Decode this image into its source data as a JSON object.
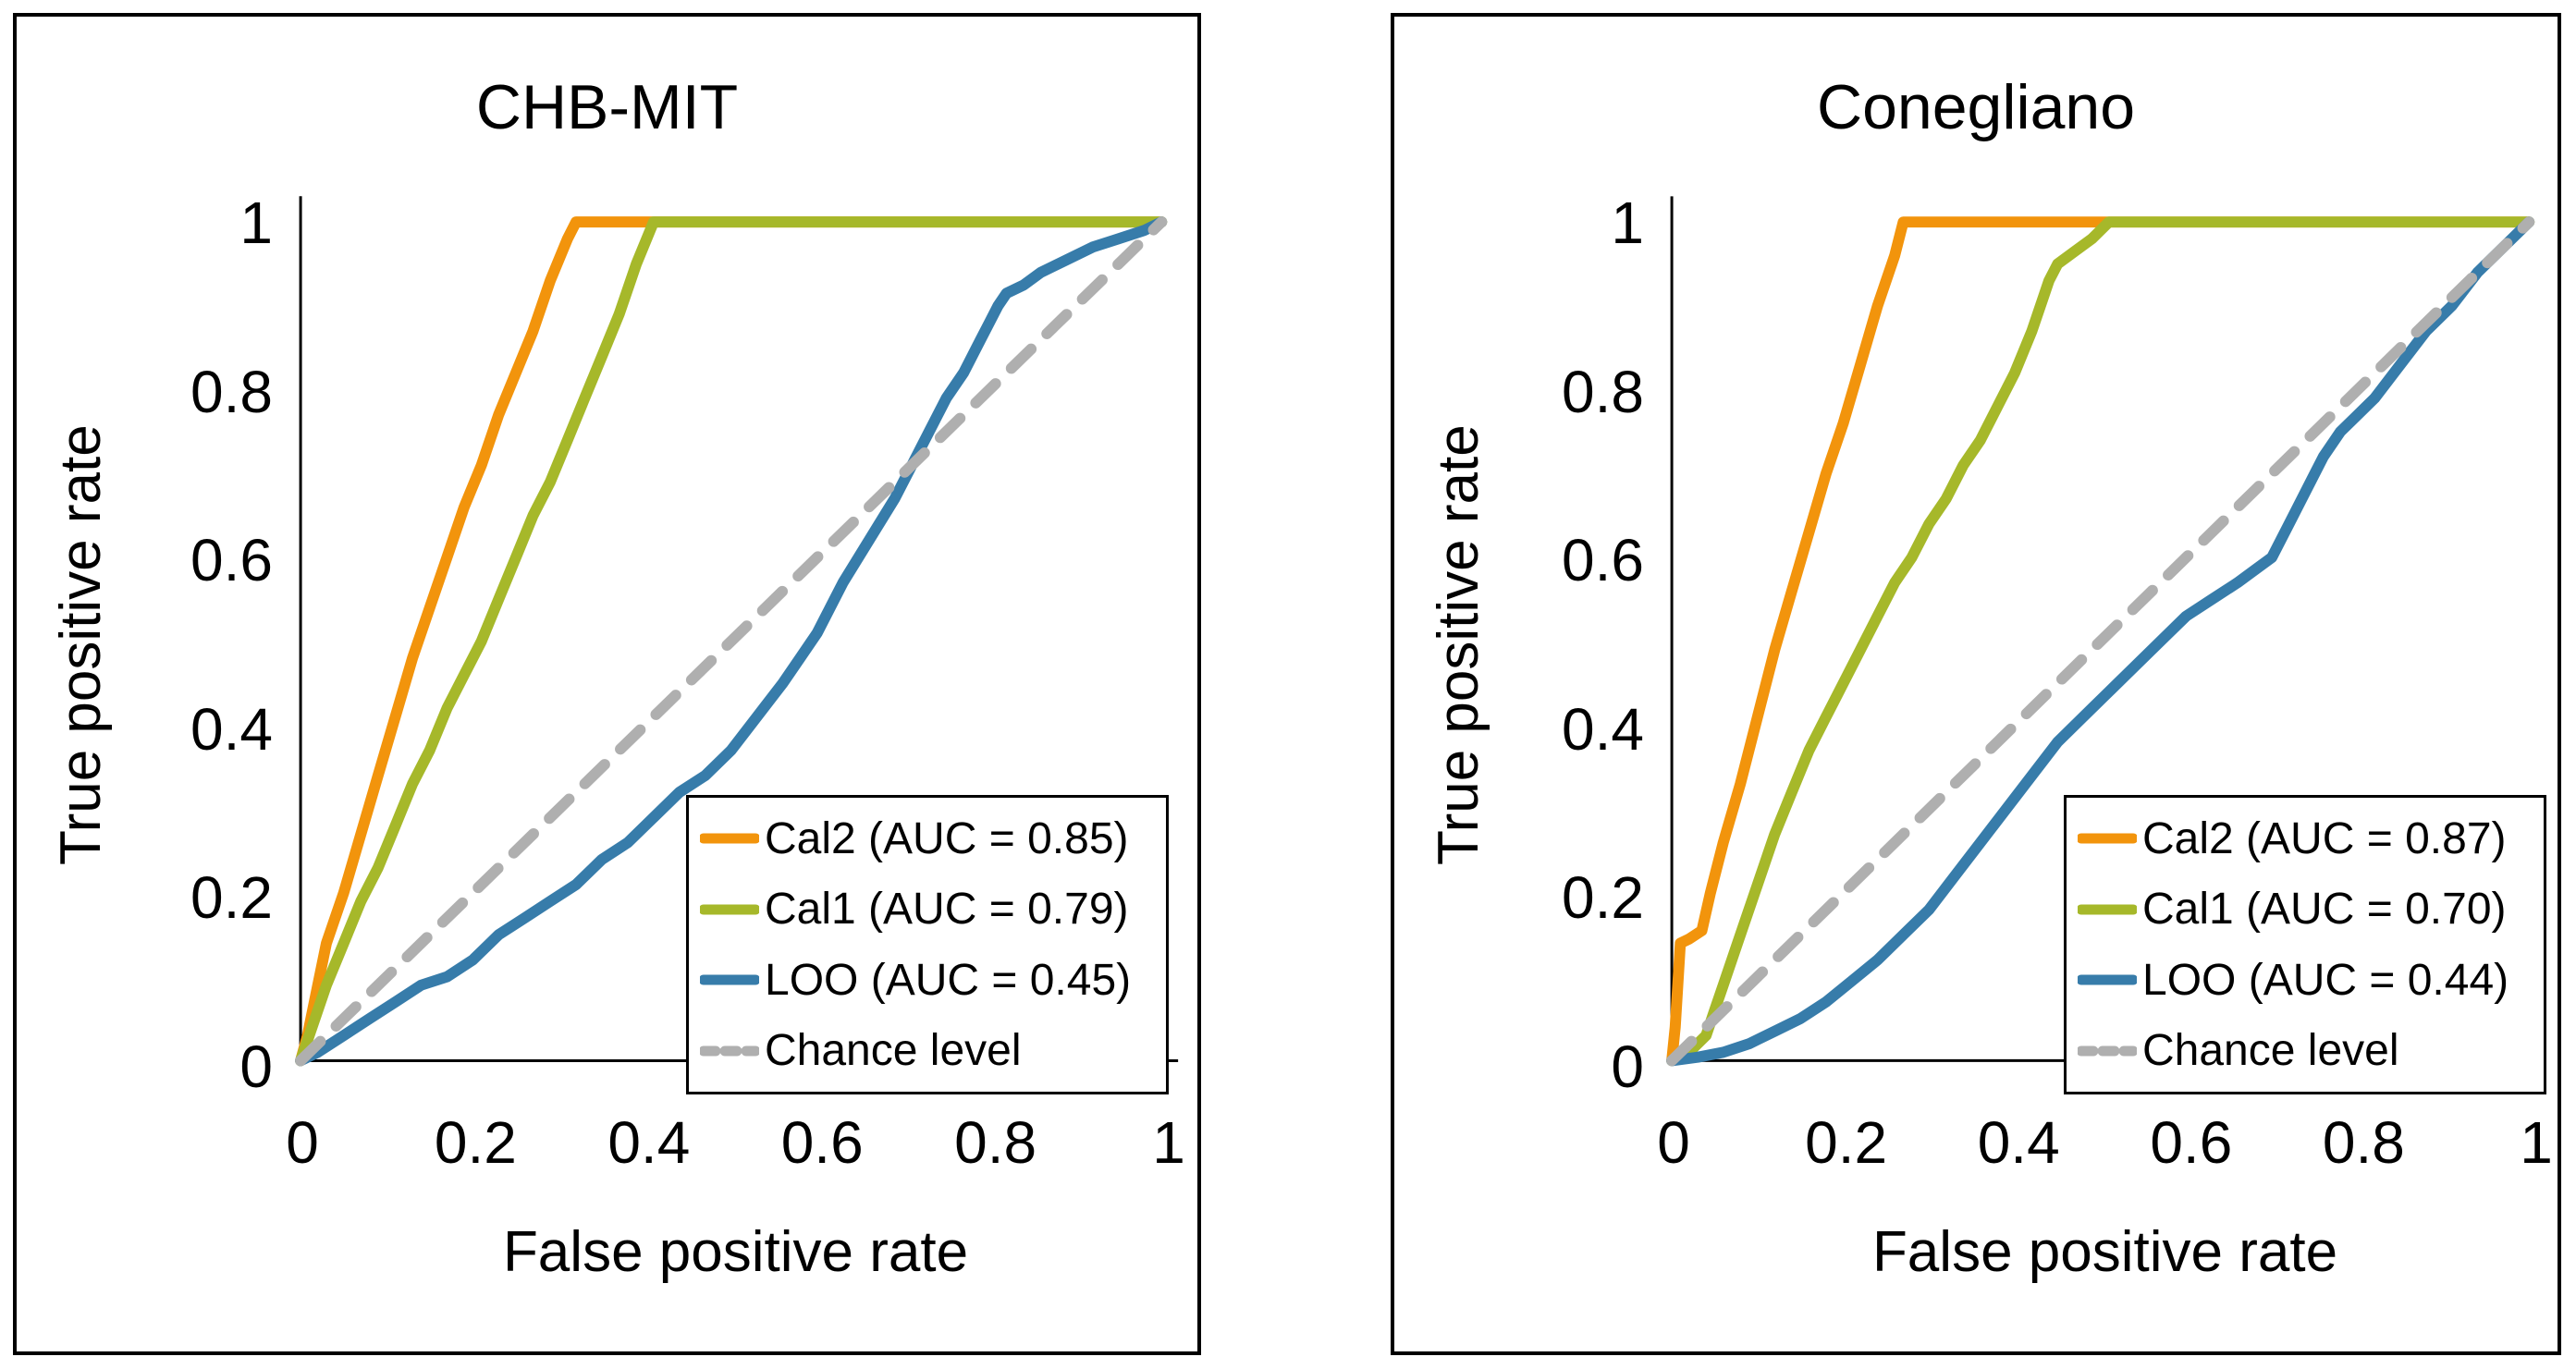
{
  "figure": {
    "background": "#ffffff",
    "panel_border_color": "#000000",
    "text_color": "#000000"
  },
  "colors": {
    "cal2_orange": "#F2940C",
    "cal1_green": "#A6B82A",
    "loo_blue": "#377CAA",
    "chance_gray": "#AFAFAF"
  },
  "chart_data": [
    {
      "type": "line",
      "title": "CHB-MIT",
      "xlabel": "False positive rate",
      "ylabel": "True positive rate",
      "xlim": [
        0,
        1
      ],
      "ylim": [
        0,
        1
      ],
      "xticks": [
        0,
        0.2,
        0.4,
        0.6,
        0.8,
        1
      ],
      "yticks": [
        0,
        0.2,
        0.4,
        0.6,
        0.8,
        1
      ],
      "grid": false,
      "legend_position": "lower-right",
      "series": [
        {
          "name": "Cal2 (AUC = 0.85)",
          "auc": 0.85,
          "color": "#F2940C",
          "style": "solid",
          "points": [
            [
              0,
              0
            ],
            [
              0.008,
              0.03
            ],
            [
              0.02,
              0.09
            ],
            [
              0.03,
              0.14
            ],
            [
              0.05,
              0.2
            ],
            [
              0.07,
              0.27
            ],
            [
              0.09,
              0.34
            ],
            [
              0.11,
              0.41
            ],
            [
              0.13,
              0.48
            ],
            [
              0.15,
              0.54
            ],
            [
              0.17,
              0.6
            ],
            [
              0.19,
              0.66
            ],
            [
              0.21,
              0.71
            ],
            [
              0.23,
              0.77
            ],
            [
              0.25,
              0.82
            ],
            [
              0.27,
              0.87
            ],
            [
              0.29,
              0.93
            ],
            [
              0.31,
              0.98
            ],
            [
              0.32,
              1
            ],
            [
              1,
              1
            ]
          ]
        },
        {
          "name": "Cal1 (AUC = 0.79)",
          "auc": 0.79,
          "color": "#A6B82A",
          "style": "solid",
          "points": [
            [
              0,
              0
            ],
            [
              0.01,
              0.03
            ],
            [
              0.03,
              0.09
            ],
            [
              0.05,
              0.14
            ],
            [
              0.07,
              0.19
            ],
            [
              0.09,
              0.23
            ],
            [
              0.11,
              0.28
            ],
            [
              0.13,
              0.33
            ],
            [
              0.15,
              0.37
            ],
            [
              0.17,
              0.42
            ],
            [
              0.19,
              0.46
            ],
            [
              0.21,
              0.5
            ],
            [
              0.23,
              0.55
            ],
            [
              0.25,
              0.6
            ],
            [
              0.27,
              0.65
            ],
            [
              0.29,
              0.69
            ],
            [
              0.31,
              0.74
            ],
            [
              0.33,
              0.79
            ],
            [
              0.35,
              0.84
            ],
            [
              0.37,
              0.89
            ],
            [
              0.39,
              0.95
            ],
            [
              0.41,
              1
            ],
            [
              1,
              1
            ]
          ]
        },
        {
          "name": "LOO (AUC = 0.45)",
          "auc": 0.45,
          "color": "#377CAA",
          "style": "solid",
          "points": [
            [
              0,
              0
            ],
            [
              0.02,
              0.01
            ],
            [
              0.05,
              0.03
            ],
            [
              0.08,
              0.05
            ],
            [
              0.11,
              0.07
            ],
            [
              0.14,
              0.09
            ],
            [
              0.17,
              0.1
            ],
            [
              0.2,
              0.12
            ],
            [
              0.23,
              0.15
            ],
            [
              0.26,
              0.17
            ],
            [
              0.29,
              0.19
            ],
            [
              0.32,
              0.21
            ],
            [
              0.35,
              0.24
            ],
            [
              0.38,
              0.26
            ],
            [
              0.41,
              0.29
            ],
            [
              0.44,
              0.32
            ],
            [
              0.47,
              0.34
            ],
            [
              0.5,
              0.37
            ],
            [
              0.53,
              0.41
            ],
            [
              0.56,
              0.45
            ],
            [
              0.58,
              0.48
            ],
            [
              0.6,
              0.51
            ],
            [
              0.63,
              0.57
            ],
            [
              0.66,
              0.62
            ],
            [
              0.69,
              0.67
            ],
            [
              0.71,
              0.71
            ],
            [
              0.73,
              0.75
            ],
            [
              0.75,
              0.79
            ],
            [
              0.77,
              0.82
            ],
            [
              0.79,
              0.86
            ],
            [
              0.8,
              0.88
            ],
            [
              0.81,
              0.9
            ],
            [
              0.82,
              0.915
            ],
            [
              0.84,
              0.925
            ],
            [
              0.86,
              0.94
            ],
            [
              0.89,
              0.955
            ],
            [
              0.92,
              0.97
            ],
            [
              0.95,
              0.98
            ],
            [
              0.98,
              0.99
            ],
            [
              1,
              1
            ]
          ]
        },
        {
          "name": "Chance level",
          "color": "#AFAFAF",
          "style": "dashed",
          "points": [
            [
              0,
              0
            ],
            [
              1,
              1
            ]
          ]
        }
      ]
    },
    {
      "type": "line",
      "title": "Conegliano",
      "xlabel": "False positive rate",
      "ylabel": "True positive rate",
      "xlim": [
        0,
        1
      ],
      "ylim": [
        0,
        1
      ],
      "xticks": [
        0,
        0.2,
        0.4,
        0.6,
        0.8,
        1
      ],
      "yticks": [
        0,
        0.2,
        0.4,
        0.6,
        0.8,
        1
      ],
      "grid": false,
      "legend_position": "lower-right",
      "series": [
        {
          "name": "Cal2 (AUC = 0.87)",
          "auc": 0.87,
          "color": "#F2940C",
          "style": "solid",
          "points": [
            [
              0,
              0
            ],
            [
              0.004,
              0.04
            ],
            [
              0.007,
              0.09
            ],
            [
              0.01,
              0.14
            ],
            [
              0.02,
              0.145
            ],
            [
              0.035,
              0.155
            ],
            [
              0.045,
              0.2
            ],
            [
              0.06,
              0.26
            ],
            [
              0.08,
              0.33
            ],
            [
              0.1,
              0.41
            ],
            [
              0.12,
              0.49
            ],
            [
              0.14,
              0.56
            ],
            [
              0.16,
              0.63
            ],
            [
              0.18,
              0.7
            ],
            [
              0.2,
              0.76
            ],
            [
              0.22,
              0.83
            ],
            [
              0.24,
              0.9
            ],
            [
              0.26,
              0.96
            ],
            [
              0.27,
              1
            ],
            [
              1,
              1
            ]
          ]
        },
        {
          "name": "Cal1 (AUC = 0.70)",
          "auc": 0.7,
          "color": "#A6B82A",
          "style": "solid",
          "points": [
            [
              0,
              0
            ],
            [
              0.02,
              0.01
            ],
            [
              0.04,
              0.03
            ],
            [
              0.05,
              0.06
            ],
            [
              0.06,
              0.09
            ],
            [
              0.08,
              0.15
            ],
            [
              0.1,
              0.21
            ],
            [
              0.12,
              0.27
            ],
            [
              0.14,
              0.32
            ],
            [
              0.16,
              0.37
            ],
            [
              0.18,
              0.41
            ],
            [
              0.2,
              0.45
            ],
            [
              0.22,
              0.49
            ],
            [
              0.24,
              0.53
            ],
            [
              0.26,
              0.57
            ],
            [
              0.28,
              0.6
            ],
            [
              0.3,
              0.64
            ],
            [
              0.32,
              0.67
            ],
            [
              0.34,
              0.71
            ],
            [
              0.36,
              0.74
            ],
            [
              0.38,
              0.78
            ],
            [
              0.4,
              0.82
            ],
            [
              0.42,
              0.87
            ],
            [
              0.43,
              0.9
            ],
            [
              0.44,
              0.93
            ],
            [
              0.45,
              0.95
            ],
            [
              0.47,
              0.965
            ],
            [
              0.49,
              0.98
            ],
            [
              0.51,
              1
            ],
            [
              1,
              1
            ]
          ]
        },
        {
          "name": "LOO (AUC = 0.44)",
          "auc": 0.44,
          "color": "#377CAA",
          "style": "solid",
          "points": [
            [
              0,
              0
            ],
            [
              0.03,
              0.004
            ],
            [
              0.06,
              0.01
            ],
            [
              0.09,
              0.02
            ],
            [
              0.12,
              0.035
            ],
            [
              0.15,
              0.05
            ],
            [
              0.18,
              0.07
            ],
            [
              0.21,
              0.095
            ],
            [
              0.24,
              0.12
            ],
            [
              0.27,
              0.15
            ],
            [
              0.3,
              0.18
            ],
            [
              0.33,
              0.22
            ],
            [
              0.36,
              0.26
            ],
            [
              0.39,
              0.3
            ],
            [
              0.42,
              0.34
            ],
            [
              0.45,
              0.38
            ],
            [
              0.48,
              0.41
            ],
            [
              0.51,
              0.44
            ],
            [
              0.54,
              0.47
            ],
            [
              0.57,
              0.5
            ],
            [
              0.6,
              0.53
            ],
            [
              0.63,
              0.55
            ],
            [
              0.66,
              0.57
            ],
            [
              0.68,
              0.585
            ],
            [
              0.7,
              0.6
            ],
            [
              0.72,
              0.64
            ],
            [
              0.74,
              0.68
            ],
            [
              0.76,
              0.72
            ],
            [
              0.78,
              0.75
            ],
            [
              0.8,
              0.77
            ],
            [
              0.82,
              0.79
            ],
            [
              0.85,
              0.83
            ],
            [
              0.88,
              0.87
            ],
            [
              0.91,
              0.9
            ],
            [
              0.94,
              0.94
            ],
            [
              0.97,
              0.97
            ],
            [
              1,
              1
            ]
          ]
        },
        {
          "name": "Chance level",
          "color": "#AFAFAF",
          "style": "dashed",
          "points": [
            [
              0,
              0
            ],
            [
              1,
              1
            ]
          ]
        }
      ]
    }
  ]
}
